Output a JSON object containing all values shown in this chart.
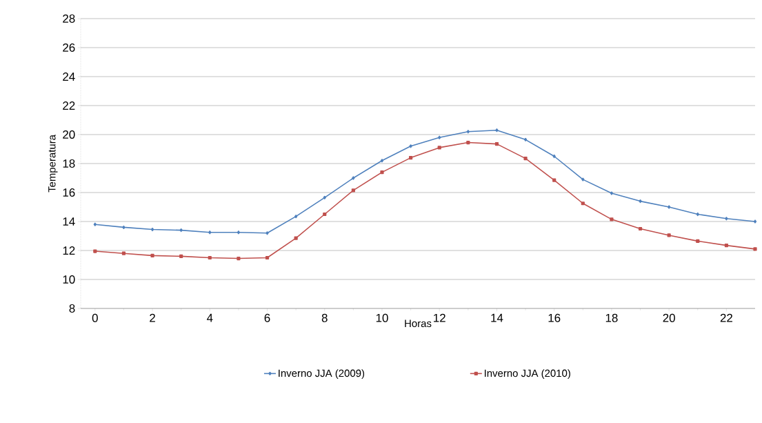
{
  "chart_data": {
    "type": "line",
    "xlabel": "Horas",
    "ylabel": "Temperatura",
    "x": [
      0,
      1,
      2,
      3,
      4,
      5,
      6,
      7,
      8,
      9,
      10,
      11,
      12,
      13,
      14,
      15,
      16,
      17,
      18,
      19,
      20,
      21,
      22,
      23
    ],
    "series": [
      {
        "name": "Inverno JJA (2009)",
        "color": "#4f81bd",
        "marker": "diamond",
        "values": [
          13.8,
          13.6,
          13.45,
          13.4,
          13.25,
          13.25,
          13.2,
          14.35,
          15.65,
          17.0,
          18.2,
          19.2,
          19.8,
          20.2,
          20.3,
          19.65,
          18.5,
          16.9,
          15.95,
          15.4,
          15.0,
          14.5,
          14.2,
          14.0
        ]
      },
      {
        "name": "Inverno JJA (2010)",
        "color": "#c0504d",
        "marker": "square",
        "values": [
          11.95,
          11.8,
          11.65,
          11.6,
          11.5,
          11.45,
          11.5,
          12.85,
          14.5,
          16.15,
          17.4,
          18.4,
          19.1,
          19.45,
          19.35,
          18.35,
          16.85,
          15.25,
          14.15,
          13.5,
          13.05,
          12.65,
          12.35,
          12.1
        ]
      }
    ],
    "xlim": [
      -0.5,
      23
    ],
    "xticks": [
      0,
      2,
      4,
      6,
      8,
      10,
      12,
      14,
      16,
      18,
      20,
      22
    ],
    "ylim": [
      8,
      28
    ],
    "yticks": [
      8,
      10,
      12,
      14,
      16,
      18,
      20,
      22,
      24,
      26,
      28
    ],
    "grid": "y",
    "legend": "bottom",
    "line_style": "solid"
  }
}
